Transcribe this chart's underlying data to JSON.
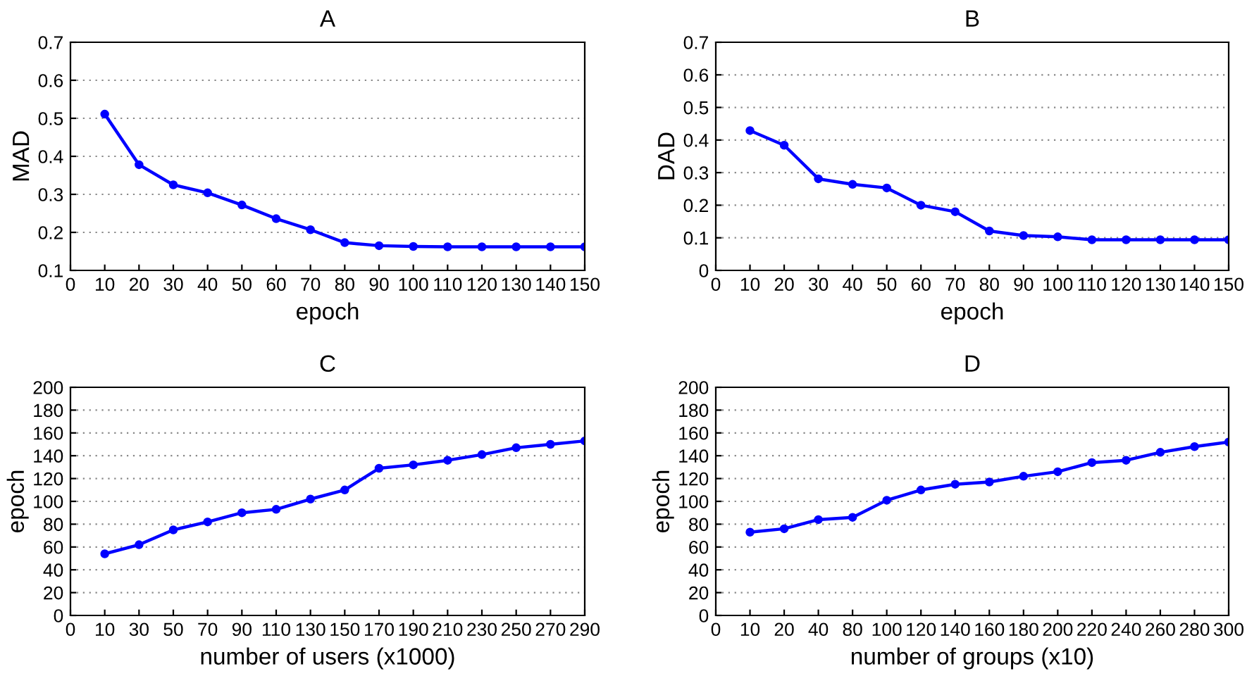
{
  "chart_data": [
    {
      "type": "line",
      "title": "A",
      "xlabel": "epoch",
      "ylabel": "MAD",
      "x": [
        10,
        20,
        30,
        40,
        50,
        60,
        70,
        80,
        90,
        100,
        110,
        120,
        130,
        140,
        150
      ],
      "series": [
        {
          "color": "#0000ff",
          "values": [
            0.511,
            0.378,
            0.325,
            0.304,
            0.272,
            0.236,
            0.207,
            0.173,
            0.165,
            0.163,
            0.162,
            0.162,
            0.162,
            0.162,
            0.162
          ]
        }
      ],
      "xlim": [
        0,
        150
      ],
      "xticks": [
        0,
        10,
        20,
        30,
        40,
        50,
        60,
        70,
        80,
        90,
        100,
        110,
        120,
        130,
        140,
        150
      ],
      "ylim": [
        0.1,
        0.7
      ],
      "yticks": [
        0.1,
        0.2,
        0.3,
        0.4,
        0.5,
        0.6,
        0.7
      ],
      "grid": "y",
      "marker": "circle",
      "line_style": "solid",
      "legend": false
    },
    {
      "type": "line",
      "title": "B",
      "xlabel": "epoch",
      "ylabel": "DAD",
      "x": [
        10,
        20,
        30,
        40,
        50,
        60,
        70,
        80,
        90,
        100,
        110,
        120,
        130,
        140,
        150
      ],
      "series": [
        {
          "color": "#0000ff",
          "values": [
            0.429,
            0.384,
            0.281,
            0.264,
            0.253,
            0.2,
            0.18,
            0.121,
            0.107,
            0.103,
            0.094,
            0.094,
            0.094,
            0.094,
            0.094
          ]
        }
      ],
      "xlim": [
        0,
        150
      ],
      "xticks": [
        0,
        10,
        20,
        30,
        40,
        50,
        60,
        70,
        80,
        90,
        100,
        110,
        120,
        130,
        140,
        150
      ],
      "ylim": [
        0,
        0.7
      ],
      "yticks": [
        0,
        0.1,
        0.2,
        0.3,
        0.4,
        0.5,
        0.6,
        0.7
      ],
      "grid": "y",
      "marker": "circle",
      "line_style": "solid",
      "legend": false
    },
    {
      "type": "line",
      "title": "C",
      "xlabel": "number of users (x1000)",
      "ylabel": "epoch",
      "categories": [
        "0",
        "10",
        "30",
        "50",
        "70",
        "90",
        "110",
        "130",
        "150",
        "170",
        "190",
        "210",
        "230",
        "250",
        "270",
        "290"
      ],
      "series": [
        {
          "color": "#0000ff",
          "values": [
            null,
            54,
            62,
            75,
            82,
            90,
            93,
            102,
            110,
            129,
            132,
            136,
            141,
            147,
            150,
            153
          ]
        }
      ],
      "ylim": [
        0,
        200
      ],
      "yticks": [
        0,
        20,
        40,
        60,
        80,
        100,
        120,
        140,
        160,
        180,
        200
      ],
      "grid": "y",
      "marker": "circle",
      "line_style": "solid",
      "legend": false
    },
    {
      "type": "line",
      "title": "D",
      "xlabel": "number of groups (x10)",
      "ylabel": "epoch",
      "categories": [
        "0",
        "10",
        "20",
        "40",
        "80",
        "100",
        "120",
        "140",
        "160",
        "180",
        "200",
        "220",
        "240",
        "260",
        "280",
        "300"
      ],
      "series": [
        {
          "color": "#0000ff",
          "values": [
            null,
            73,
            76,
            84,
            86,
            101,
            110,
            115,
            117,
            122,
            126,
            134,
            136,
            143,
            148,
            152
          ]
        }
      ],
      "ylim": [
        0,
        200
      ],
      "yticks": [
        0,
        20,
        40,
        60,
        80,
        100,
        120,
        140,
        160,
        180,
        200
      ],
      "grid": "y",
      "marker": "circle",
      "line_style": "solid",
      "legend": false
    }
  ]
}
